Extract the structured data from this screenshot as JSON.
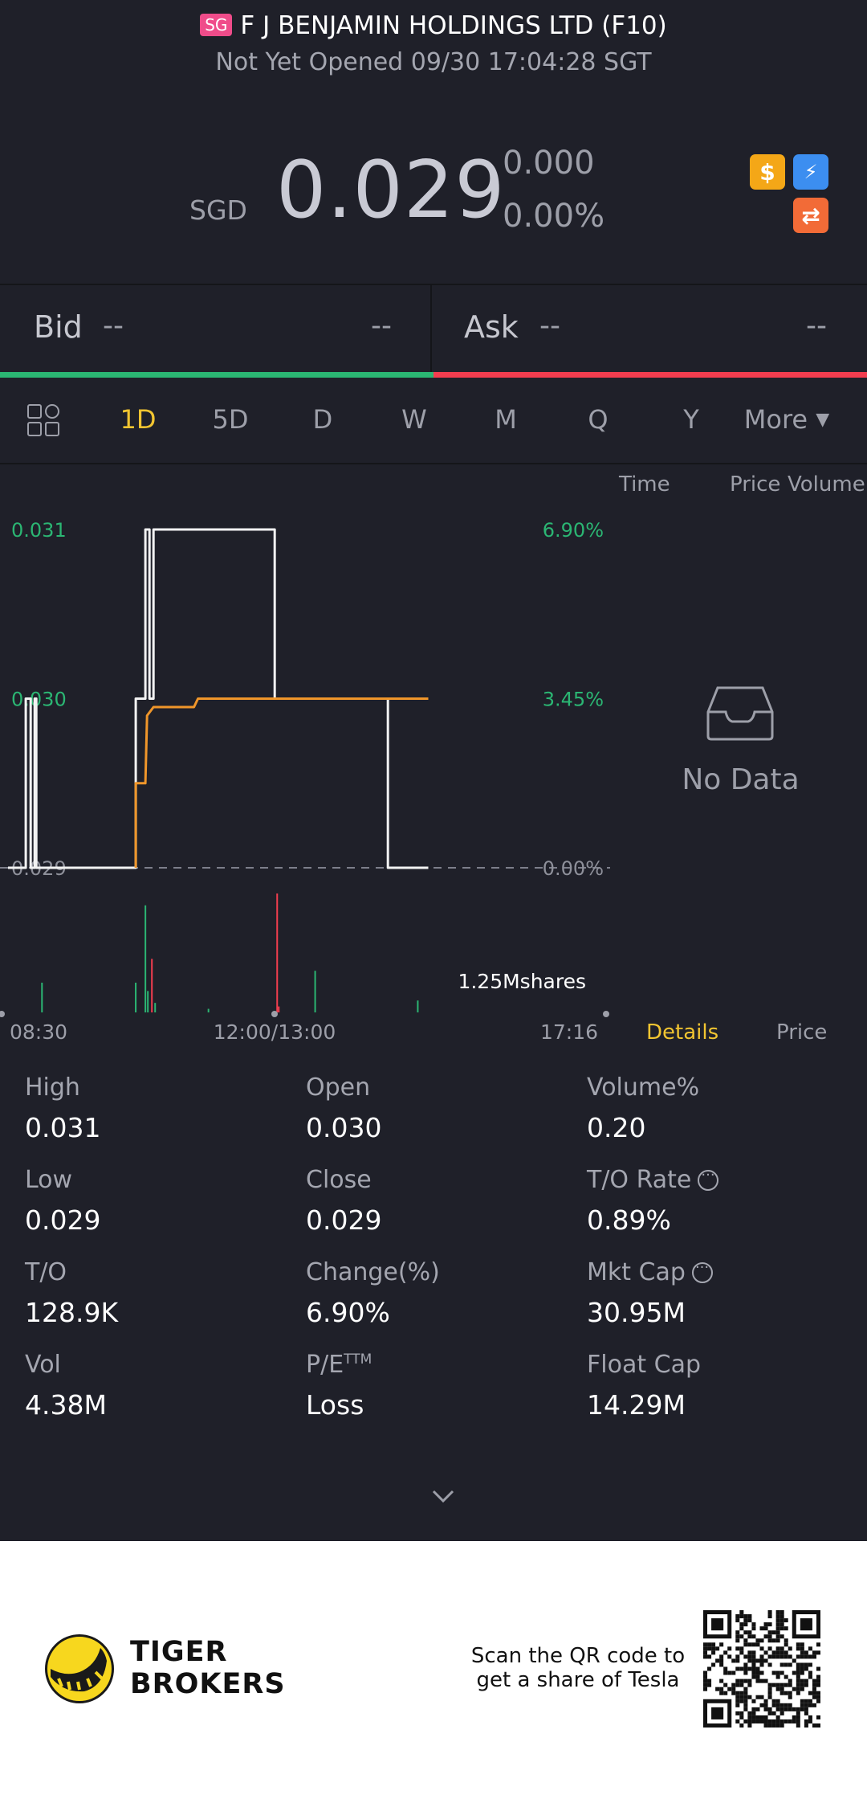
{
  "header": {
    "market_badge": "SG",
    "title": "F J BENJAMIN HOLDINGS LTD (F10)",
    "status": "Not Yet Opened 09/30 17:04:28 SGT"
  },
  "quote": {
    "currency": "SGD",
    "price": "0.029",
    "change": "0.000",
    "change_pct": "0.00%",
    "badges": [
      {
        "icon": "dollar-icon",
        "symbol": "$",
        "color": "#f4a717"
      },
      {
        "icon": "lightning-icon",
        "symbol": "⚡",
        "color": "#3c8ef0"
      },
      {
        "icon": "exchange-icon",
        "symbol": "⇄",
        "color": "#f26b37"
      }
    ]
  },
  "bid_ask": {
    "bid_label": "Bid",
    "bid_price": "--",
    "bid_size": "--",
    "ask_label": "Ask",
    "ask_price": "--",
    "ask_size": "--"
  },
  "periods": {
    "items": [
      "1D",
      "5D",
      "D",
      "W",
      "M",
      "Q",
      "Y",
      "More"
    ],
    "active": "1D"
  },
  "side_panel": {
    "tabs": [
      "Time",
      "Price",
      "Volume"
    ],
    "empty_text": "No Data",
    "detail_tabs": [
      "Details",
      "Price"
    ]
  },
  "chart_data": {
    "type": "line",
    "y_tick_labels": [
      "0.031",
      "0.030",
      "0.029"
    ],
    "y_pct_labels": [
      "6.90%",
      "3.45%",
      "0.00%"
    ],
    "ylim": [
      0.029,
      0.031
    ],
    "time_labels": [
      "08:30",
      "12:00/13:00",
      "17:16"
    ],
    "volume_label": "1.25Mshares",
    "reference_price": 0.029,
    "series": [
      {
        "name": "price",
        "color": "#f2f2f2",
        "points": [
          [
            0,
            0.029
          ],
          [
            22,
            0.029
          ],
          [
            22,
            0.03
          ],
          [
            28,
            0.03
          ],
          [
            28,
            0.029
          ],
          [
            33,
            0.029
          ],
          [
            33,
            0.03
          ],
          [
            35,
            0.03
          ],
          [
            35,
            0.029
          ],
          [
            158,
            0.029
          ],
          [
            158,
            0.03
          ],
          [
            170,
            0.03
          ],
          [
            170,
            0.031
          ],
          [
            175,
            0.031
          ],
          [
            175,
            0.03
          ],
          [
            180,
            0.03
          ],
          [
            180,
            0.031
          ],
          [
            330,
            0.031
          ],
          [
            330,
            0.03
          ],
          [
            470,
            0.03
          ],
          [
            470,
            0.029
          ],
          [
            520,
            0.029
          ]
        ]
      },
      {
        "name": "avg",
        "color": "#f0962a",
        "points": [
          [
            158,
            0.029
          ],
          [
            158,
            0.0295
          ],
          [
            170,
            0.0295
          ],
          [
            172,
            0.0299
          ],
          [
            180,
            0.02995
          ],
          [
            230,
            0.02995
          ],
          [
            235,
            0.03
          ],
          [
            520,
            0.03
          ]
        ]
      }
    ],
    "volume_bars": [
      {
        "t": 42,
        "v": 0.25,
        "c": "#2bb673"
      },
      {
        "t": 158,
        "v": 0.25,
        "c": "#2bb673"
      },
      {
        "t": 170,
        "v": 0.9,
        "c": "#2bb673"
      },
      {
        "t": 173,
        "v": 0.18,
        "c": "#2bb673"
      },
      {
        "t": 178,
        "v": 0.45,
        "c": "#f23d4f"
      },
      {
        "t": 182,
        "v": 0.08,
        "c": "#2bb673"
      },
      {
        "t": 248,
        "v": 0.03,
        "c": "#2bb673"
      },
      {
        "t": 333,
        "v": 1.0,
        "c": "#f23d4f"
      },
      {
        "t": 335,
        "v": 0.05,
        "c": "#f23d4f"
      },
      {
        "t": 380,
        "v": 0.35,
        "c": "#2bb673"
      },
      {
        "t": 507,
        "v": 0.1,
        "c": "#2bb673"
      }
    ]
  },
  "stats": [
    {
      "label": "High",
      "value": "0.031"
    },
    {
      "label": "Open",
      "value": "0.030"
    },
    {
      "label": "Volume%",
      "value": "0.20"
    },
    {
      "label": "Low",
      "value": "0.029"
    },
    {
      "label": "Close",
      "value": "0.029"
    },
    {
      "label": "T/O Rate",
      "value": "0.89%",
      "info": true
    },
    {
      "label": "T/O",
      "value": "128.9K"
    },
    {
      "label": "Change(%)",
      "value": "6.90%"
    },
    {
      "label": "Mkt Cap",
      "value": "30.95M",
      "info": true
    },
    {
      "label": "Vol",
      "value": "4.38M"
    },
    {
      "label": "P/E",
      "sup": "TTM",
      "value": "Loss"
    },
    {
      "label": "Float Cap",
      "value": "14.29M"
    }
  ],
  "footer": {
    "brand_line1": "TIGER",
    "brand_line2": "BROKERS",
    "qr_text_line1": "Scan the QR code to",
    "qr_text_line2": "get a share of Tesla"
  },
  "colors": {
    "background": "#1f2029",
    "up": "#2bb673",
    "down": "#f23d4f",
    "accent": "#f2c531"
  }
}
